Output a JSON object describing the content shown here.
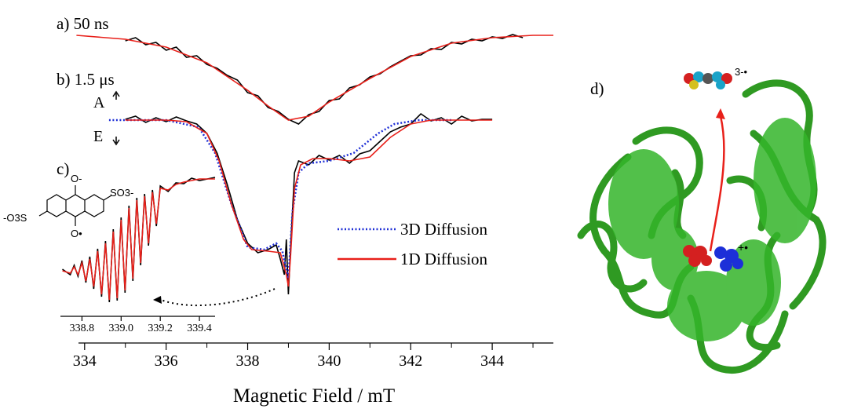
{
  "chart_data": [
    {
      "type": "line",
      "x_label": "Magnetic Field / mT",
      "xlim": [
        333.85,
        345.5
      ],
      "ylim": [
        0,
        390
      ],
      "xticks": [
        334,
        336,
        338,
        340,
        342,
        344
      ],
      "xminorticks": [
        335,
        337,
        339,
        341,
        343,
        345
      ],
      "annotations": [
        "a) 50 ns",
        "b) 1.5 μs",
        "A",
        "E",
        "c)",
        "d)",
        "SO3-",
        "-O3S",
        "O-",
        "O•",
        "3-•",
        "+•"
      ],
      "series": [
        {
          "color": "#000000",
          "style": "solid",
          "x": [
            335.0,
            335.25,
            335.5,
            335.75,
            336.0,
            336.25,
            336.5,
            336.75,
            337.0,
            337.25,
            337.5,
            337.75,
            338.0,
            338.25,
            338.5,
            338.75,
            339.0,
            339.25,
            339.5,
            339.75,
            340.0,
            340.25,
            340.5,
            340.75,
            341.0,
            341.25,
            341.5,
            341.75,
            342.0,
            342.25,
            342.5,
            342.75,
            343.0,
            343.25,
            343.5,
            343.75,
            344.0,
            344.25,
            344.5,
            344.75
          ],
          "values": [
            368,
            372,
            363,
            366,
            356,
            360,
            347,
            349,
            338,
            333,
            324,
            318,
            302,
            298,
            283,
            278,
            268,
            262,
            274,
            278,
            292,
            294,
            308,
            312,
            322,
            326,
            335,
            342,
            349,
            350,
            358,
            357,
            366,
            364,
            370,
            368,
            373,
            371,
            376,
            372
          ]
        },
        {
          "color": "#e8201a",
          "style": "solid",
          "x": [
            333.8,
            335.0,
            336.0,
            337.0,
            338.0,
            338.5,
            339.0,
            339.5,
            340.0,
            341.0,
            342.0,
            343.0,
            344.0,
            345.0,
            345.5
          ],
          "values": [
            375,
            370,
            360,
            340,
            305,
            285,
            267,
            272,
            290,
            320,
            348,
            365,
            372,
            375,
            375
          ]
        },
        {
          "color": "#000000",
          "style": "solid",
          "x": [
            335.0,
            335.25,
            335.5,
            335.75,
            336.0,
            336.25,
            336.5,
            336.75,
            337.0,
            337.25,
            337.5,
            337.75,
            338.0,
            338.25,
            338.5,
            338.7,
            338.8,
            338.9,
            338.95,
            339.0,
            339.05,
            339.1,
            339.15,
            339.25,
            339.5,
            339.75,
            340.0,
            340.25,
            340.5,
            340.75,
            341.0,
            341.25,
            341.5,
            341.75,
            342.0,
            342.25,
            342.5,
            342.75,
            343.0,
            343.25,
            343.5,
            343.75,
            344.0
          ],
          "values": [
            268,
            272,
            264,
            270,
            265,
            271,
            266,
            262,
            250,
            225,
            185,
            140,
            110,
            98,
            102,
            108,
            90,
            70,
            115,
            45,
            100,
            150,
            200,
            215,
            210,
            222,
            216,
            222,
            212,
            224,
            228,
            240,
            252,
            258,
            262,
            275,
            266,
            270,
            262,
            272,
            266,
            268,
            268
          ]
        },
        {
          "name": "3D Diffusion",
          "color": "#1f2fd6",
          "style": "dotted",
          "x": [
            334.6,
            336.0,
            336.8,
            337.2,
            337.6,
            338.0,
            338.4,
            338.7,
            338.85,
            339.0,
            339.1,
            339.25,
            339.5,
            340.0,
            340.6,
            341.2,
            341.6,
            342.2,
            343.0
          ],
          "values": [
            267,
            267,
            258,
            225,
            160,
            105,
            102,
            110,
            100,
            65,
            150,
            200,
            212,
            215,
            225,
            250,
            262,
            267,
            267
          ]
        },
        {
          "name": "1D Diffusion",
          "color": "#e8201a",
          "style": "solid",
          "x": [
            335.0,
            336.0,
            336.5,
            337.0,
            337.3,
            337.6,
            337.9,
            338.1,
            338.5,
            338.8,
            338.95,
            339.0,
            339.05,
            339.15,
            339.3,
            339.6,
            340.0,
            340.5,
            341.0,
            341.5,
            342.0,
            342.5,
            344.0
          ],
          "values": [
            267,
            267,
            265,
            250,
            215,
            160,
            115,
            102,
            100,
            98,
            70,
            55,
            90,
            180,
            210,
            218,
            218,
            215,
            220,
            245,
            262,
            267,
            267
          ]
        }
      ]
    },
    {
      "type": "line",
      "xlim": [
        338.69,
        339.48
      ],
      "ylim": [
        0,
        390
      ],
      "xticks": [
        338.8,
        {
          "value": 339,
          "label": "339.0"
        },
        339.2,
        339.4
      ],
      "series": [
        {
          "color": "#000000",
          "style": "solid",
          "x": [
            338.7,
            338.74,
            338.76,
            338.78,
            338.8,
            338.82,
            338.84,
            338.86,
            338.88,
            338.9,
            338.92,
            338.94,
            338.96,
            338.98,
            339.0,
            339.02,
            339.04,
            339.06,
            339.08,
            339.1,
            339.12,
            339.14,
            339.16,
            339.18,
            339.2,
            339.24,
            339.28,
            339.32,
            339.36,
            339.4,
            339.48
          ],
          "values": [
            77,
            70,
            82,
            68,
            88,
            60,
            93,
            52,
            103,
            42,
            113,
            35,
            128,
            37,
            143,
            47,
            158,
            62,
            168,
            82,
            173,
            107,
            178,
            132,
            183,
            176,
            187,
            186,
            193,
            190,
            194
          ]
        },
        {
          "color": "#e8201a",
          "style": "solid",
          "x": [
            338.7,
            338.74,
            338.76,
            338.78,
            338.8,
            338.82,
            338.84,
            338.86,
            338.88,
            338.9,
            338.92,
            338.94,
            338.96,
            338.98,
            339.0,
            339.02,
            339.04,
            339.06,
            339.08,
            339.1,
            339.12,
            339.14,
            339.16,
            339.18,
            339.2,
            339.24,
            339.28,
            339.32,
            339.36,
            339.4,
            339.48
          ],
          "values": [
            75,
            72,
            80,
            70,
            85,
            62,
            90,
            55,
            100,
            45,
            110,
            38,
            125,
            40,
            140,
            50,
            155,
            65,
            165,
            85,
            170,
            110,
            175,
            135,
            180,
            178,
            185,
            188,
            190,
            192,
            192
          ]
        }
      ]
    }
  ]
}
